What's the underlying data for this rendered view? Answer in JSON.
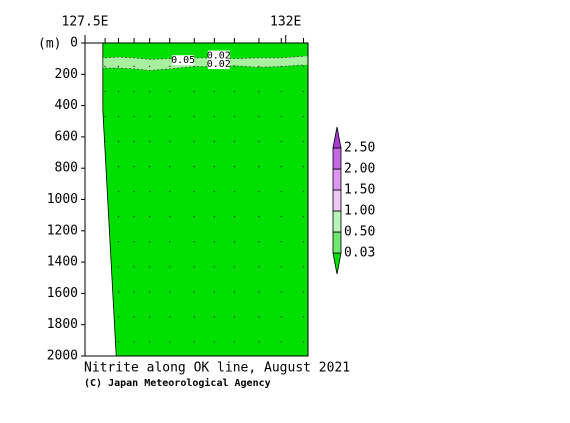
{
  "chart_data": {
    "type": "section",
    "title": "Nitrite along OK line, August 2021",
    "credit": "(C) Japan Meteorological Agency",
    "y_label": "(m)",
    "xlim": [
      127.5,
      132.5
    ],
    "xticks": [
      {
        "value": 127.5,
        "label": "127.5E"
      },
      {
        "value": 132,
        "label": "132E"
      }
    ],
    "ylim": [
      0,
      2000
    ],
    "yticks": [
      0,
      200,
      400,
      600,
      800,
      1000,
      1200,
      1400,
      1600,
      1800,
      2000
    ],
    "background_color": "#00e000",
    "x": [
      127.95,
      128.25,
      128.6,
      128.95,
      129.4,
      129.95,
      130.4,
      130.85,
      131.4,
      131.9,
      132.4
    ],
    "band_top": [
      95,
      90,
      95,
      105,
      100,
      95,
      95,
      100,
      95,
      95,
      85
    ],
    "band_bottom": [
      160,
      160,
      165,
      175,
      165,
      150,
      150,
      145,
      155,
      150,
      140
    ],
    "band_color": "#a8f0a0",
    "contour_labels": [
      {
        "value": 0.05,
        "x": 129.7,
        "depth": 110
      },
      {
        "value": 0.02,
        "x": 130.5,
        "depth": 80
      },
      {
        "value": 0.02,
        "x": 130.5,
        "depth": 135
      }
    ],
    "seafloor_x": [
      127.9,
      127.9,
      128.2
    ],
    "seafloor_depth": [
      0,
      430,
      2000
    ],
    "colorbar": {
      "levels": [
        {
          "value": 0.03,
          "label": "0.03"
        },
        {
          "value": 0.5,
          "label": "0.50"
        },
        {
          "value": 1,
          "label": "1.00"
        },
        {
          "value": 1.5,
          "label": "1.50"
        },
        {
          "value": 2,
          "label": "2.00"
        },
        {
          "value": 2.5,
          "label": "2.50"
        }
      ],
      "colors": [
        "#00e000",
        "#70e870",
        "#b8f4b8",
        "#f0c8f8",
        "#dc98f0",
        "#c468e4",
        "#a83cd0"
      ]
    }
  }
}
